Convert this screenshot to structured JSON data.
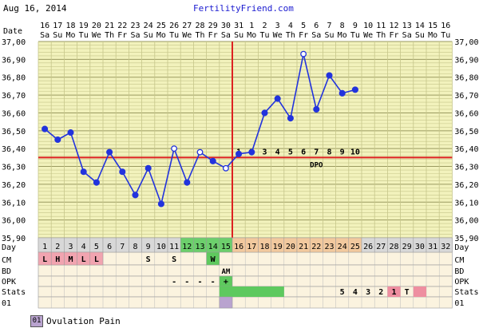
{
  "header": {
    "date": "Aug 16, 2014",
    "site": "FertilityFriend.com"
  },
  "chart_data": {
    "type": "line",
    "x_dates": [
      "16",
      "17",
      "18",
      "19",
      "20",
      "21",
      "22",
      "23",
      "24",
      "25",
      "26",
      "27",
      "28",
      "29",
      "30",
      "31",
      "1",
      "2",
      "3",
      "4",
      "5",
      "6",
      "7",
      "8",
      "9",
      "10",
      "11",
      "12",
      "13",
      "14",
      "15",
      "16"
    ],
    "x_weekdays": [
      "Sa",
      "Su",
      "Mo",
      "Tu",
      "We",
      "Th",
      "Fr",
      "Sa",
      "Su",
      "Mo",
      "Tu",
      "We",
      "Th",
      "Fr",
      "Sa",
      "Su",
      "Mo",
      "Tu",
      "We",
      "Th",
      "Fr",
      "Sa",
      "Su",
      "Mo",
      "Tu",
      "We",
      "Th",
      "Fr",
      "Sa",
      "Su",
      "Mo",
      "Tu"
    ],
    "row_labels": {
      "date": "Date",
      "day": "Day",
      "cm": "CM",
      "bd": "BD",
      "opk": "OPK",
      "stats": "Stats",
      "code": "01"
    },
    "ylim": [
      35.9,
      37.0
    ],
    "y_ticks": [
      "35,90",
      "36,00",
      "36,10",
      "36,20",
      "36,30",
      "36,40",
      "36,50",
      "36,60",
      "36,70",
      "36,80",
      "36,90",
      "37,00"
    ],
    "temps": [
      36.51,
      36.45,
      36.49,
      36.27,
      36.21,
      36.38,
      36.27,
      36.14,
      36.29,
      36.09,
      36.4,
      36.21,
      36.38,
      36.33,
      36.29,
      36.37,
      36.38,
      36.6,
      36.68,
      36.57,
      36.93,
      36.62,
      36.81,
      36.71,
      36.73
    ],
    "open_points": [
      10,
      12,
      14,
      20
    ],
    "coverline": 36.35,
    "ovulation_day_index": 14,
    "dpo_numbers": [
      "1",
      "2",
      "3",
      "4",
      "5",
      "6",
      "7",
      "8",
      "9",
      "10"
    ],
    "dpo_label": "DPO",
    "days": [
      "1",
      "2",
      "3",
      "4",
      "5",
      "6",
      "7",
      "8",
      "9",
      "10",
      "11",
      "12",
      "13",
      "14",
      "15",
      "16",
      "17",
      "18",
      "19",
      "20",
      "21",
      "22",
      "23",
      "24",
      "25",
      "26",
      "27",
      "28",
      "29",
      "30",
      "31",
      "32"
    ],
    "cm": {
      "0": "L",
      "1": "H",
      "2": "M",
      "3": "L",
      "4": "L",
      "8": "S",
      "10": "S",
      "13": "W"
    },
    "bd_label": "AM",
    "opk": {
      "10": "-",
      "11": "-",
      "12": "-",
      "13": "-",
      "14": "+"
    },
    "stats": {
      "23": "5",
      "24": "4",
      "25": "3",
      "26": "2",
      "27": "1",
      "28": "T"
    },
    "colors": {
      "line": "#2233dd",
      "red": "#dd2222",
      "grid_bg": "#f2f2bc",
      "grid_line": "#c6c68a"
    }
  },
  "legend": {
    "code": "01",
    "label": "Ovulation Pain"
  }
}
